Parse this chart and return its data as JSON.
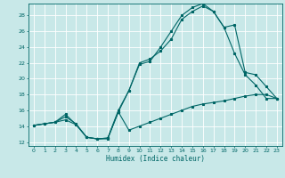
{
  "xlabel": "Humidex (Indice chaleur)",
  "bg_color": "#c8e8e8",
  "grid_color": "#ffffff",
  "line_color": "#006666",
  "xlim": [
    -0.5,
    23.5
  ],
  "ylim": [
    11.5,
    29.5
  ],
  "xticks": [
    0,
    1,
    2,
    3,
    4,
    5,
    6,
    7,
    8,
    9,
    10,
    11,
    12,
    13,
    14,
    15,
    16,
    17,
    18,
    19,
    20,
    21,
    22,
    23
  ],
  "yticks": [
    12,
    14,
    16,
    18,
    20,
    22,
    24,
    26,
    28
  ],
  "line1_x": [
    0,
    1,
    2,
    3,
    4,
    5,
    6,
    7,
    8,
    9,
    10,
    11,
    12,
    13,
    14,
    15,
    16,
    17,
    18,
    19,
    20,
    21,
    22,
    23
  ],
  "line1_y": [
    14.1,
    14.3,
    14.5,
    14.8,
    14.2,
    12.6,
    12.4,
    12.5,
    15.8,
    13.5,
    14.0,
    14.5,
    15.0,
    15.5,
    16.0,
    16.5,
    16.8,
    17.0,
    17.2,
    17.5,
    17.8,
    18.0,
    18.0,
    17.5
  ],
  "line2_x": [
    0,
    1,
    2,
    3,
    4,
    5,
    6,
    7,
    8,
    9,
    10,
    11,
    12,
    13,
    14,
    15,
    16,
    17,
    18,
    19,
    20,
    21,
    22,
    23
  ],
  "line2_y": [
    14.1,
    14.3,
    14.5,
    15.2,
    14.3,
    12.6,
    12.4,
    12.5,
    16.0,
    18.5,
    22.0,
    22.5,
    23.5,
    25.0,
    27.5,
    28.5,
    29.2,
    28.5,
    26.5,
    23.2,
    20.5,
    19.2,
    17.5,
    17.5
  ],
  "line3_x": [
    0,
    1,
    2,
    3,
    4,
    5,
    6,
    7,
    8,
    9,
    10,
    11,
    12,
    13,
    14,
    15,
    16,
    17,
    18,
    19,
    20,
    21,
    22,
    23
  ],
  "line3_y": [
    14.1,
    14.3,
    14.5,
    15.5,
    14.2,
    12.6,
    12.4,
    12.4,
    15.8,
    18.5,
    21.8,
    22.2,
    24.0,
    26.0,
    28.0,
    29.0,
    29.5,
    28.5,
    26.5,
    26.8,
    20.8,
    20.5,
    19.0,
    17.5
  ]
}
